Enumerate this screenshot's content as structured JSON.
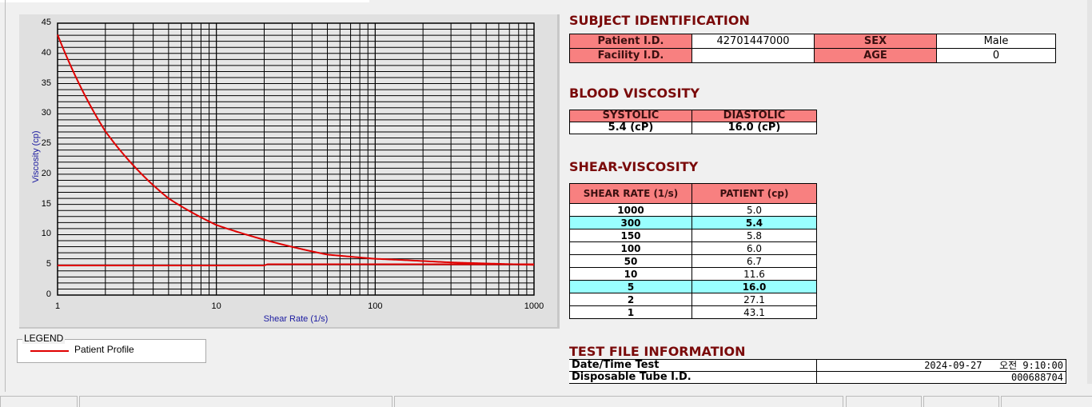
{
  "chart_data": {
    "type": "line",
    "xlabel": "Shear Rate (1/s)",
    "ylabel": "Viscosity (cp)",
    "x_scale": "log",
    "xlim": [
      1,
      1000
    ],
    "ylim": [
      0,
      45
    ],
    "x_ticks": [
      "1",
      "10",
      "100",
      "1000"
    ],
    "y_ticks": [
      "0",
      "5",
      "10",
      "15",
      "20",
      "25",
      "30",
      "35",
      "40",
      "45"
    ],
    "grid": true,
    "legend_position": "bottom-left",
    "series": [
      {
        "name": "Patient Profile",
        "color": "#e00000",
        "x": [
          1,
          2,
          5,
          10,
          50,
          100,
          150,
          300,
          1000
        ],
        "y": [
          43.1,
          27.1,
          16.0,
          11.6,
          6.7,
          6.0,
          5.8,
          5.4,
          5.0
        ]
      },
      {
        "color": "#e00000",
        "x": [
          1,
          20,
          21,
          1000
        ],
        "y": [
          4.9,
          4.9,
          5.1,
          5.1
        ]
      }
    ]
  },
  "legend": {
    "title": "LEGEND",
    "items": [
      {
        "label": "Patient Profile",
        "color": "#e00000"
      }
    ]
  },
  "subject": {
    "title": "SUBJECT IDENTIFICATION",
    "patient_id_label": "Patient I.D.",
    "patient_id": "42701447000",
    "sex_label": "SEX",
    "sex": "Male",
    "facility_label": "Facility I.D.",
    "facility": "",
    "age_label": "AGE",
    "age": "0"
  },
  "blood": {
    "title": "BLOOD VISCOSITY",
    "systolic_label": "SYSTOLIC",
    "diastolic_label": "DIASTOLIC",
    "systolic": "5.4 (cP)",
    "diastolic": "16.0 (cP)"
  },
  "shear": {
    "title": "SHEAR-VISCOSITY",
    "col1": "SHEAR RATE (1/s)",
    "col2": "PATIENT (cp)",
    "rows": [
      {
        "rate": "1000",
        "value": "5.0"
      },
      {
        "rate": "300",
        "value": "5.4",
        "highlight": true
      },
      {
        "rate": "150",
        "value": "5.8"
      },
      {
        "rate": "100",
        "value": "6.0"
      },
      {
        "rate": "50",
        "value": "6.7"
      },
      {
        "rate": "10",
        "value": "11.6"
      },
      {
        "rate": "5",
        "value": "16.0",
        "highlight": true
      },
      {
        "rate": "2",
        "value": "27.1"
      },
      {
        "rate": "1",
        "value": "43.1"
      }
    ]
  },
  "testfile": {
    "title": "TEST FILE INFORMATION",
    "datetime_label": "Date/Time Test",
    "datetime": "2024-09-27   오전 9:10:00",
    "tube_label": "Disposable Tube I.D.",
    "tube": "000688704"
  }
}
